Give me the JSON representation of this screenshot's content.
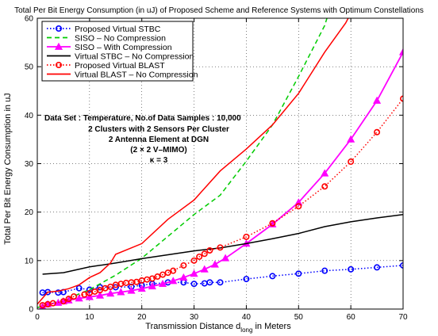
{
  "chart_data": {
    "type": "line",
    "title": "Total Per Bit Energy Consumption (in uJ) of Proposed Scheme and Reference Systems with Optimum Constellations",
    "xlabel": "Transmission Distance d",
    "xlabel_sub": "long",
    "xlabel_suffix": " in Meters",
    "ylabel": "Total Per Bit Energy Consumption in uJ",
    "xlim": [
      0,
      70
    ],
    "ylim": [
      0,
      60
    ],
    "xticks": [
      0,
      10,
      20,
      30,
      40,
      50,
      60,
      70
    ],
    "yticks": [
      0,
      10,
      20,
      30,
      40,
      50,
      60
    ],
    "grid": true,
    "legend_position": "top-left",
    "annotations": [
      "Data Set : Temperature, No.of Data Samples : 10,000",
      "2 Clusters with 2 Sensors Per Cluster",
      "2 Antenna Element at DGN",
      "(2 × 2 V–MIMO)",
      "κ = 3"
    ],
    "series": [
      {
        "name": "Proposed Virtual STBC",
        "color": "#0000ff",
        "style": "dotted",
        "marker": "circle",
        "x": [
          1,
          2,
          4,
          5,
          8,
          10,
          12,
          15,
          18,
          20,
          22,
          25,
          28,
          30,
          32,
          33,
          35,
          40,
          45,
          50,
          55,
          60,
          65,
          70
        ],
        "y": [
          3.4,
          3.5,
          3.4,
          3.5,
          4.3,
          4.0,
          4.5,
          4.5,
          4.6,
          4.9,
          5.2,
          5.5,
          5.5,
          5.2,
          5.3,
          5.5,
          5.5,
          6.2,
          6.8,
          7.3,
          7.9,
          8.2,
          8.6,
          9.0
        ]
      },
      {
        "name": "SISO – No Compression",
        "color": "#00cc00",
        "style": "dashed",
        "marker": "none",
        "x": [
          0,
          5,
          10,
          15,
          20,
          25,
          30,
          35,
          40,
          45,
          50,
          55,
          56
        ],
        "y": [
          0.3,
          1.8,
          4.0,
          7.0,
          10.5,
          15.0,
          19.5,
          23.5,
          30.5,
          38.0,
          48.0,
          58.5,
          62.0
        ]
      },
      {
        "name": "SISO – With Compression",
        "color": "#ff00ff",
        "style": "solid",
        "marker": "triangle",
        "x": [
          1,
          2,
          4,
          5,
          6,
          8,
          10,
          12,
          14,
          16,
          18,
          20,
          22,
          24,
          26,
          28,
          30,
          32,
          34,
          36,
          40,
          45,
          50,
          55,
          60,
          65,
          70
        ],
        "y": [
          0.5,
          1.0,
          1.3,
          1.6,
          1.8,
          2.2,
          2.5,
          2.8,
          3.2,
          3.5,
          3.8,
          4.2,
          4.7,
          5.2,
          5.8,
          6.5,
          7.3,
          8.2,
          9.2,
          10.5,
          13.5,
          17.5,
          22.0,
          28.0,
          35.0,
          43.0,
          53.0
        ]
      },
      {
        "name": "Virtual STBC – No Compression",
        "color": "#000000",
        "style": "solid",
        "marker": "none",
        "x": [
          1,
          5,
          10,
          15,
          20,
          25,
          30,
          35,
          40,
          45,
          50,
          55,
          60,
          65,
          70
        ],
        "y": [
          7.2,
          7.5,
          8.7,
          9.5,
          10.4,
          11.2,
          12.0,
          12.6,
          13.5,
          14.5,
          15.6,
          17.0,
          18.0,
          18.8,
          19.5
        ]
      },
      {
        "name": "Proposed Virtual BLAST",
        "color": "#ff0000",
        "style": "dotted",
        "marker": "circle",
        "x": [
          1,
          2,
          3,
          5,
          6,
          7,
          9,
          10,
          11,
          12,
          13,
          14,
          15,
          16,
          17,
          18,
          19,
          20,
          21,
          22,
          23,
          24,
          25,
          26,
          28,
          30,
          31,
          32,
          33,
          35,
          40,
          45,
          50,
          55,
          60,
          65,
          70
        ],
        "y": [
          0.8,
          1.0,
          1.2,
          1.6,
          2.1,
          2.6,
          3.0,
          3.3,
          3.6,
          3.9,
          4.3,
          4.6,
          5.0,
          5.2,
          5.4,
          5.5,
          5.6,
          5.9,
          6.1,
          6.3,
          6.7,
          7.1,
          7.5,
          7.9,
          9.0,
          10.0,
          10.8,
          11.4,
          12.1,
          12.7,
          14.9,
          17.7,
          21.2,
          25.3,
          30.4,
          36.5,
          43.4
        ]
      },
      {
        "name": "Virtual BLAST – No Compression",
        "color": "#ff0000",
        "style": "solid",
        "marker": "none",
        "x": [
          0,
          2,
          4,
          6,
          8,
          10,
          12,
          14,
          15,
          20,
          25,
          30,
          35,
          40,
          45,
          50,
          55,
          59,
          60
        ],
        "y": [
          1.0,
          3.5,
          3.7,
          4.2,
          5.0,
          6.5,
          7.5,
          9.5,
          11.3,
          13.5,
          18.5,
          22.5,
          28.5,
          33.0,
          38.0,
          44.5,
          53.0,
          59.0,
          61.0
        ]
      }
    ]
  }
}
